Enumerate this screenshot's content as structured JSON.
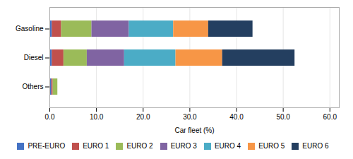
{
  "chart_data": {
    "type": "bar",
    "orientation": "horizontal",
    "stacked": true,
    "xlabel": "Car fleet (%)",
    "categories": [
      "Others",
      "Diesel",
      "Gasoline"
    ],
    "series": [
      {
        "name": "PRE-EURO",
        "color": "#4472C4",
        "values": [
          0.4,
          0.5,
          0.5
        ]
      },
      {
        "name": "EURO 1",
        "color": "#C0504D",
        "values": [
          0.3,
          2.5,
          2.0
        ]
      },
      {
        "name": "EURO 2",
        "color": "#9BBB59",
        "values": [
          1.0,
          5.0,
          6.5
        ]
      },
      {
        "name": "EURO 3",
        "color": "#8064A2",
        "values": [
          0.0,
          8.0,
          8.0
        ]
      },
      {
        "name": "EURO 4",
        "color": "#4BACC6",
        "values": [
          0.0,
          11.0,
          9.5
        ]
      },
      {
        "name": "EURO 5",
        "color": "#F79646",
        "values": [
          0.0,
          10.0,
          7.5
        ]
      },
      {
        "name": "EURO 6",
        "color": "#243F60",
        "values": [
          0.0,
          15.5,
          9.5
        ]
      }
    ],
    "xlim": [
      0,
      62
    ],
    "xticks": [
      {
        "value": 0,
        "label": "0.0"
      },
      {
        "value": 10,
        "label": "10.0"
      },
      {
        "value": 20,
        "label": "20.0"
      },
      {
        "value": 30,
        "label": "30.0"
      },
      {
        "value": 40,
        "label": "40.0"
      },
      {
        "value": 50,
        "label": "50.0"
      },
      {
        "value": 60,
        "label": "60.0"
      }
    ],
    "grid": true,
    "legend": "bottom"
  }
}
